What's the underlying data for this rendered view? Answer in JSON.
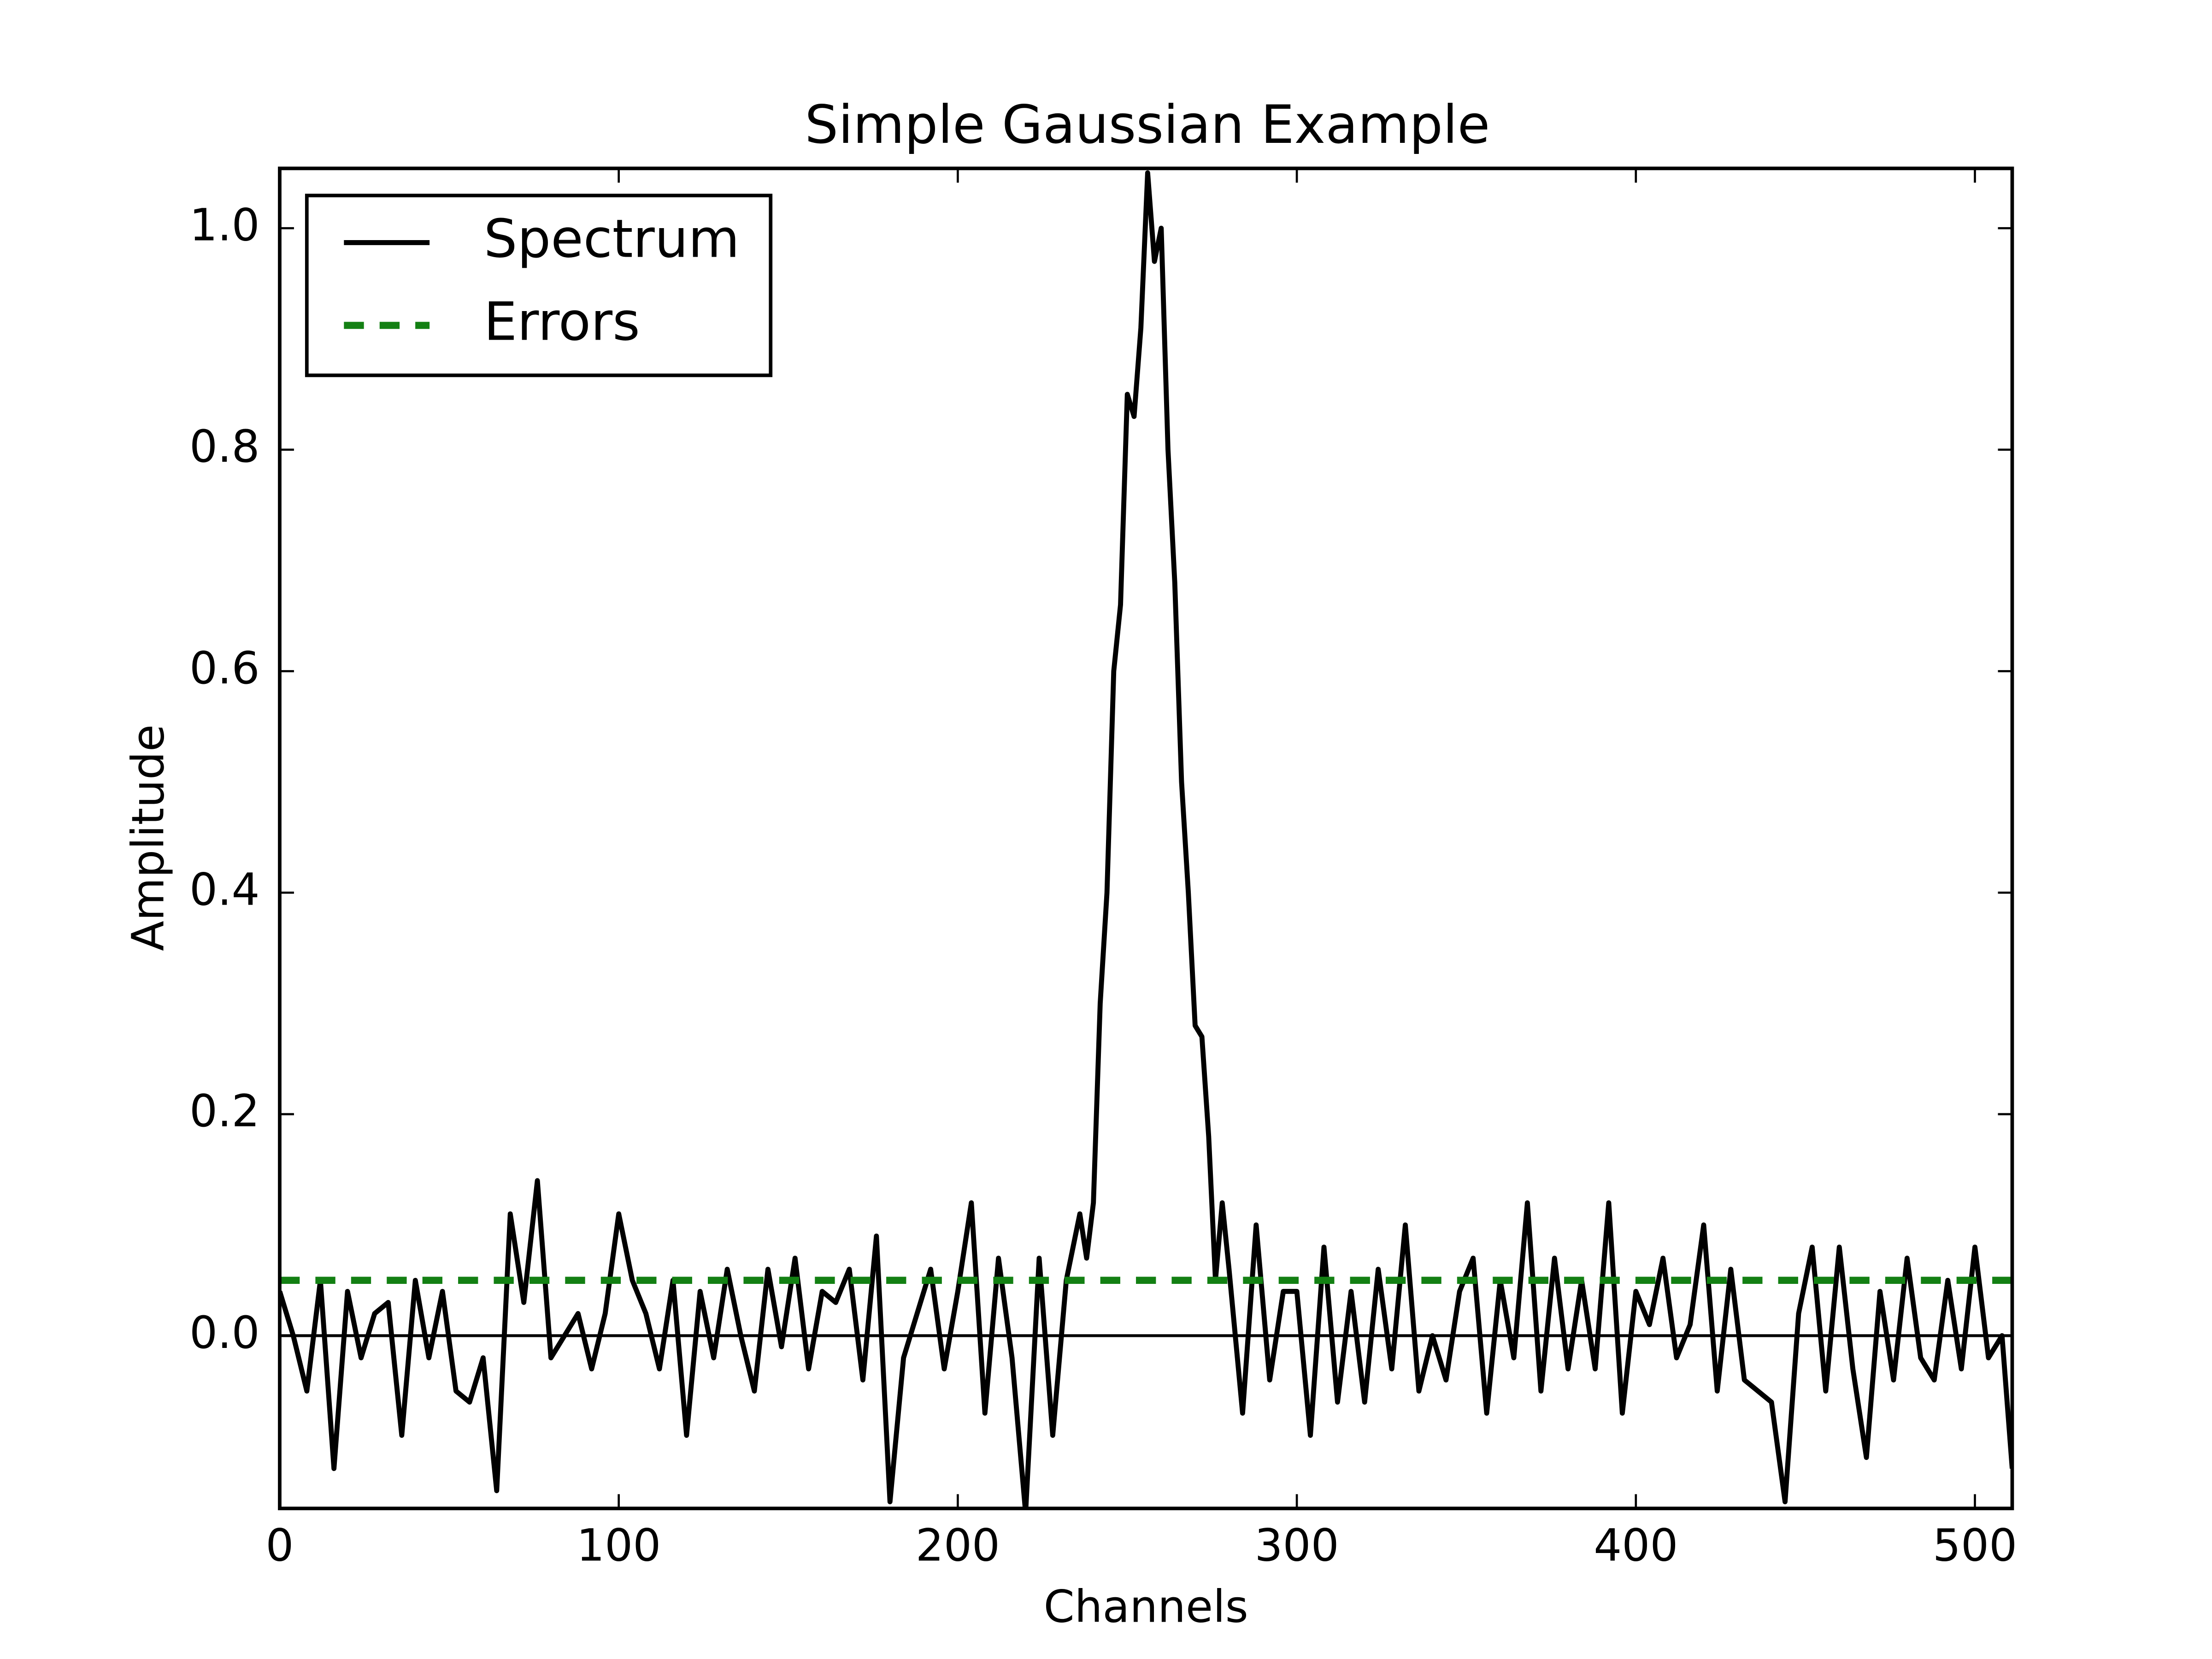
{
  "chart_data": {
    "type": "line",
    "title": "Simple Gaussian Example",
    "x_label": "Channels",
    "y_label": "Amplitude",
    "xlim": [
      0,
      511
    ],
    "ylim": [
      -0.156,
      1.054
    ],
    "xticks": [
      0,
      100,
      200,
      300,
      400,
      500
    ],
    "yticks": [
      {
        "value": 0,
        "label": "0.0"
      },
      0.2,
      0.4,
      0.6,
      0.8,
      {
        "value": 1,
        "label": "1.0"
      }
    ],
    "hline": 0,
    "legend": "upper left",
    "series": [
      {
        "name": "Spectrum",
        "color": "#000000",
        "style": "solid",
        "x": [
          0,
          4,
          8,
          12,
          16,
          20,
          24,
          28,
          32,
          36,
          40,
          44,
          48,
          52,
          56,
          60,
          64,
          68,
          72,
          76,
          80,
          84,
          88,
          92,
          96,
          100,
          104,
          108,
          112,
          116,
          120,
          124,
          128,
          132,
          136,
          140,
          144,
          148,
          152,
          156,
          160,
          164,
          168,
          172,
          176,
          180,
          184,
          188,
          192,
          196,
          200,
          204,
          208,
          212,
          216,
          220,
          224,
          228,
          232,
          236,
          238,
          240,
          242,
          244,
          246,
          248,
          250,
          252,
          254,
          256,
          258,
          260,
          262,
          264,
          266,
          268,
          270,
          272,
          274,
          276,
          278,
          280,
          284,
          288,
          292,
          296,
          300,
          304,
          308,
          312,
          316,
          320,
          324,
          328,
          332,
          336,
          340,
          344,
          348,
          352,
          356,
          360,
          364,
          368,
          372,
          376,
          380,
          384,
          388,
          392,
          396,
          400,
          404,
          408,
          412,
          416,
          420,
          424,
          428,
          432,
          436,
          440,
          444,
          448,
          452,
          456,
          460,
          464,
          468,
          472,
          476,
          480,
          484,
          488,
          492,
          496,
          500,
          504,
          508,
          511
        ],
        "values": [
          0.04,
          0.0,
          -0.05,
          0.05,
          -0.12,
          0.04,
          -0.02,
          0.02,
          0.03,
          -0.09,
          0.05,
          -0.02,
          0.04,
          -0.05,
          -0.06,
          -0.02,
          -0.14,
          0.11,
          0.03,
          0.14,
          -0.02,
          0.0,
          0.02,
          -0.03,
          0.02,
          0.11,
          0.05,
          0.02,
          -0.03,
          0.05,
          -0.09,
          0.04,
          -0.02,
          0.06,
          0.0,
          -0.05,
          0.06,
          -0.01,
          0.07,
          -0.03,
          0.04,
          0.03,
          0.06,
          -0.04,
          0.09,
          -0.15,
          -0.02,
          0.02,
          0.06,
          -0.03,
          0.04,
          0.12,
          -0.07,
          0.07,
          -0.02,
          -0.16,
          0.07,
          -0.09,
          0.05,
          0.11,
          0.07,
          0.12,
          0.3,
          0.4,
          0.6,
          0.66,
          0.85,
          0.83,
          0.91,
          1.05,
          0.97,
          1.0,
          0.8,
          0.68,
          0.5,
          0.4,
          0.28,
          0.27,
          0.18,
          0.05,
          0.12,
          0.06,
          -0.07,
          0.1,
          -0.04,
          0.04,
          0.04,
          -0.09,
          0.08,
          -0.06,
          0.04,
          -0.06,
          0.06,
          -0.03,
          0.1,
          -0.05,
          0.0,
          -0.04,
          0.04,
          0.07,
          -0.07,
          0.05,
          -0.02,
          0.12,
          -0.05,
          0.07,
          -0.03,
          0.05,
          -0.03,
          0.12,
          -0.07,
          0.04,
          0.01,
          0.07,
          -0.02,
          0.01,
          0.1,
          -0.05,
          0.06,
          -0.04,
          -0.05,
          -0.06,
          -0.15,
          0.02,
          0.08,
          -0.05,
          0.08,
          -0.03,
          -0.11,
          0.04,
          -0.04,
          0.07,
          -0.02,
          -0.04,
          0.05,
          -0.03,
          0.08,
          -0.02,
          0.0,
          -0.12
        ]
      },
      {
        "name": "Errors",
        "color": "#138013",
        "style": "dashed",
        "x": [
          0,
          511
        ],
        "values": [
          0.05,
          0.05
        ]
      }
    ]
  }
}
